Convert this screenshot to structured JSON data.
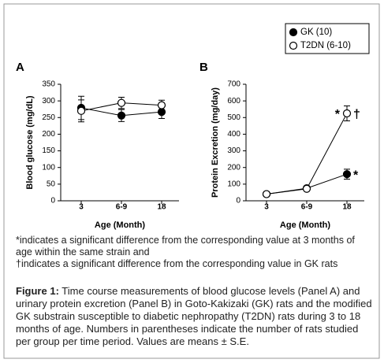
{
  "chart_data": [
    {
      "type": "line",
      "panel": "A",
      "ylabel": "Blood glucose (mg/dL)",
      "xlabel": "Age (Month)",
      "categories": [
        "3",
        "6-9",
        "18"
      ],
      "ylim": [
        0,
        350
      ],
      "yticks": [
        0,
        50,
        100,
        150,
        200,
        250,
        300,
        350
      ],
      "series": [
        {
          "name": "GK (10)",
          "color": "#000000",
          "fill": "#000000",
          "values": [
            279,
            256,
            267
          ],
          "errors": [
            35,
            18,
            20
          ]
        },
        {
          "name": "T2DN (6-10)",
          "color": "#000000",
          "fill": "#ffffff",
          "values": [
            270,
            294,
            287
          ],
          "errors": [
            33,
            17,
            15
          ]
        }
      ]
    },
    {
      "type": "line",
      "panel": "B",
      "ylabel": "Protein Excretion (mg/day)",
      "xlabel": "Age (Month)",
      "categories": [
        "3",
        "6-9",
        "18"
      ],
      "ylim": [
        0,
        700
      ],
      "yticks": [
        0,
        100,
        200,
        300,
        400,
        500,
        600,
        700
      ],
      "series": [
        {
          "color": "#000000",
          "fill": "#000000",
          "values": [
            40,
            75,
            160
          ],
          "errors": [
            5,
            8,
            30
          ],
          "annotations": [
            null,
            null,
            {
              "right": "*"
            }
          ]
        },
        {
          "color": "#000000",
          "fill": "#ffffff",
          "values": [
            40,
            72,
            525
          ],
          "errors": [
            5,
            8,
            45
          ],
          "annotations": [
            null,
            null,
            {
              "left": "*",
              "right": "†"
            }
          ]
        }
      ]
    }
  ],
  "footnotes": [
    "*indicates a significant difference from the corresponding value at 3 months of age within the same strain and",
    "†indicates a significant difference from the corresponding value in GK rats"
  ],
  "caption": {
    "label": "Figure 1:",
    "text": "Time course measurements of blood glucose levels (Panel A) and urinary protein excretion (Panel B) in Goto-Kakizaki (GK) rats and the modified GK substrain susceptible to diabetic nephropathy (T2DN) rats during 3 to 18 months of age. Numbers in parentheses indicate the number of rats studied per group per time period. Values are means ± S.E."
  }
}
